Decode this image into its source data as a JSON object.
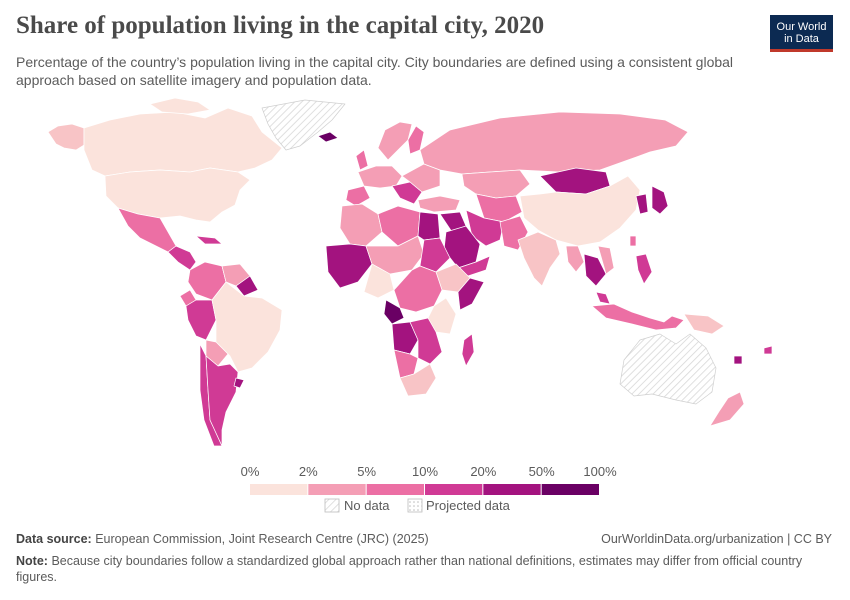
{
  "header": {
    "title": "Share of population living in the capital city, 2020",
    "subtitle": "Percentage of the country’s population living in the capital city. City boundaries are defined using a consistent global approach based on satellite imagery and population data."
  },
  "logo": {
    "line1": "Our World",
    "line2": "in Data"
  },
  "legend": {
    "bins": [
      {
        "label": "0%",
        "color": "#fbe3dc"
      },
      {
        "label": "2%",
        "color": "#f8c4c6"
      },
      {
        "label": "5%",
        "color": "#f49eb5"
      },
      {
        "label": "10%",
        "color": "#ec6fa4"
      },
      {
        "label": "20%",
        "color": "#d03a95"
      },
      {
        "label": "50%",
        "color": "#a3137f"
      },
      {
        "label": "100%",
        "color": "#6a0064"
      }
    ],
    "no_data": "No data",
    "projected": "Projected data"
  },
  "colors": {
    "no_data_hatch": "#d7d7d7",
    "ocean": "#ffffff",
    "border": "#ffffff"
  },
  "footer": {
    "source_label": "Data source:",
    "source_text": "European Commission, Joint Research Centre (JRC) (2025)",
    "url": "OurWorldinData.org/urbanization | CC BY",
    "note_label": "Note:",
    "note_text": "Because city boundaries follow a standardized global approach rather than national definitions, estimates may differ from official country figures."
  }
}
